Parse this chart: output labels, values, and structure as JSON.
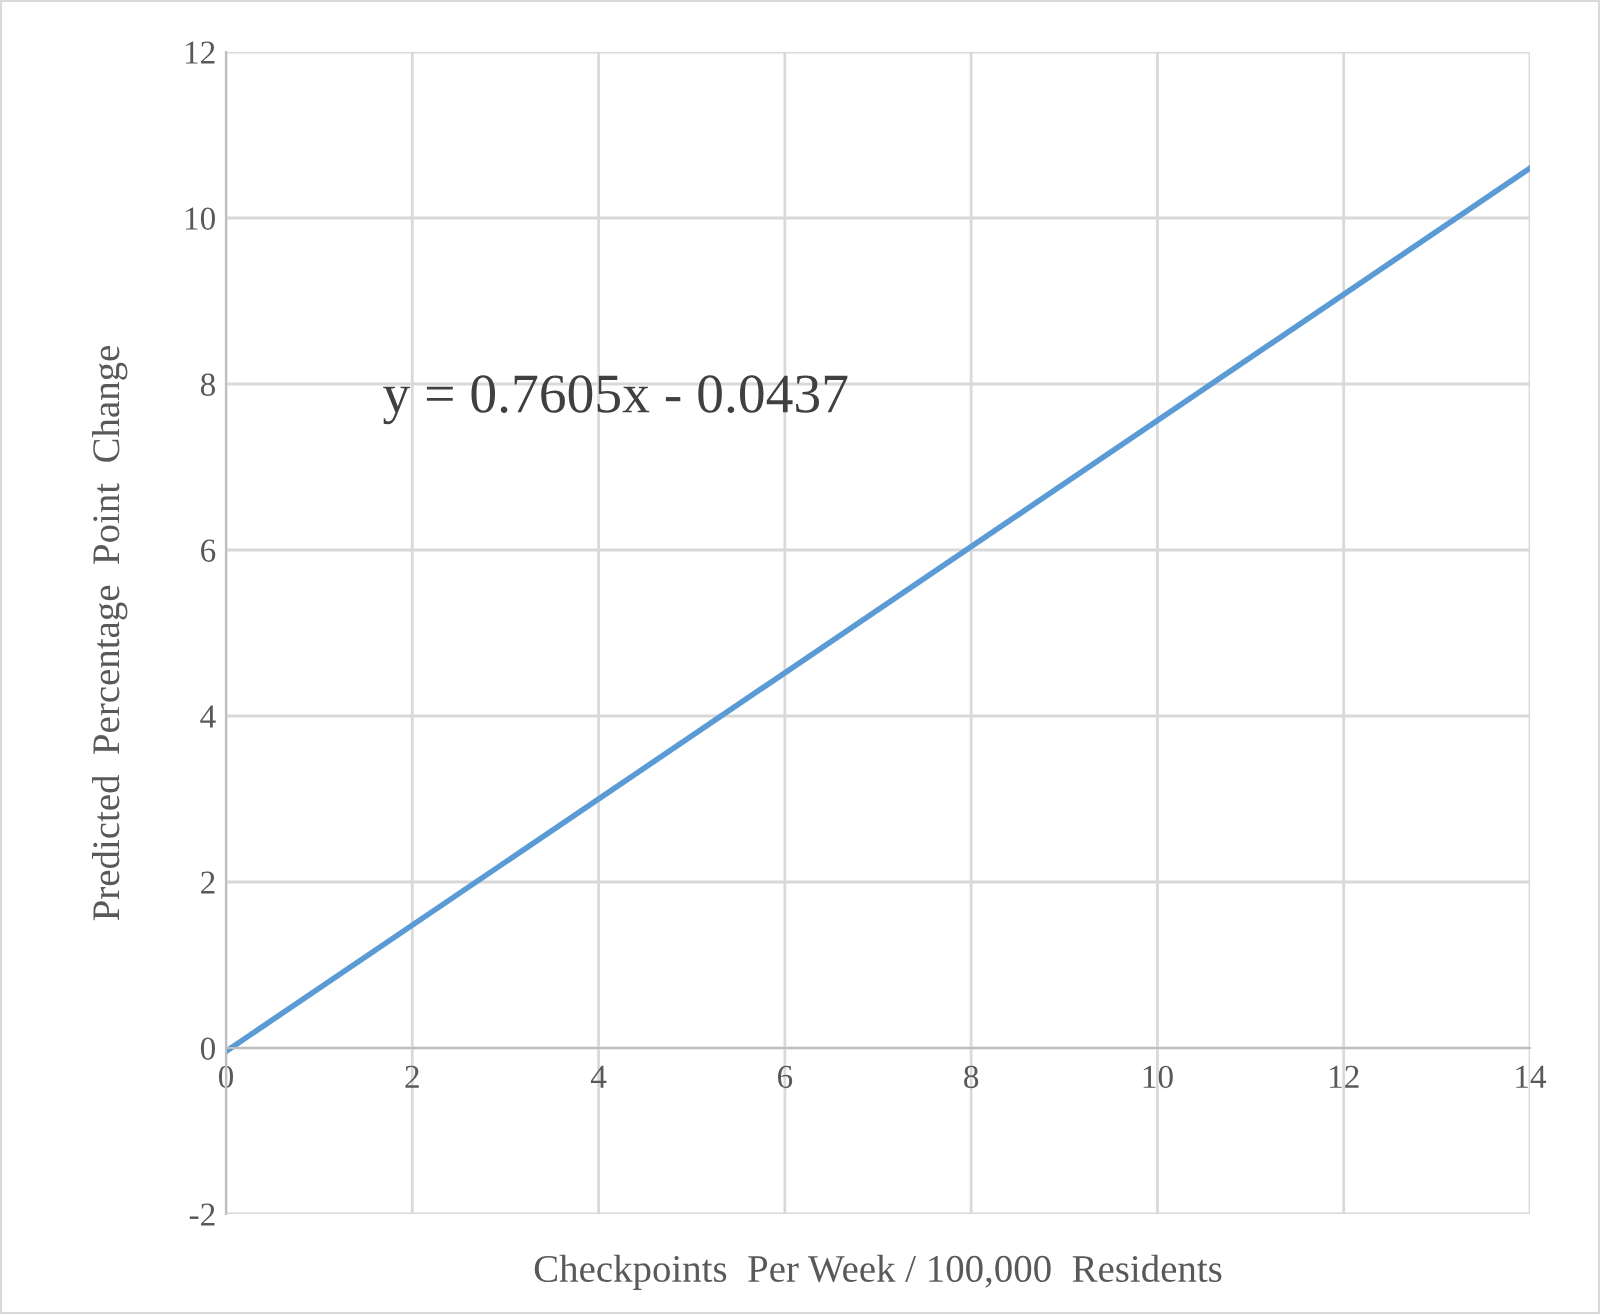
{
  "chart_data": {
    "type": "line",
    "xlabel": "Checkpoints  Per Week / 100,000  Residents",
    "ylabel": "Predicted  Percentage  Point  Change",
    "x": [
      0,
      14
    ],
    "series": [
      {
        "color": "#5b9bd5",
        "values": [
          -0.04,
          10.6
        ]
      }
    ],
    "xlim": [
      0,
      14
    ],
    "xticks": [
      0,
      2,
      4,
      6,
      8,
      10,
      12,
      14
    ],
    "ylim": [
      -2,
      12
    ],
    "yticks": [
      -2,
      0,
      2,
      4,
      6,
      8,
      10,
      12
    ],
    "grid": true,
    "marker": "none",
    "line_style": "solid",
    "annotations": [
      "y = 0.7605x - 0.0437"
    ]
  }
}
